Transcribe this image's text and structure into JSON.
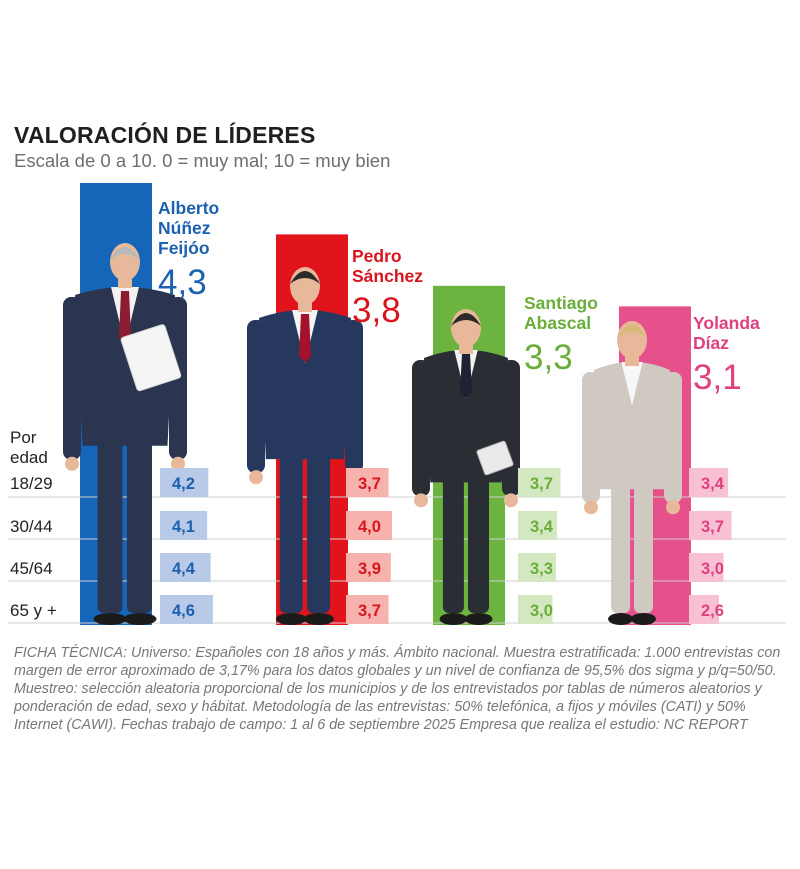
{
  "title": "VALORACIÓN DE LÍDERES",
  "subtitle": "Escala de 0 a 10. 0 = muy mal; 10 = muy bien",
  "age_header": [
    "Por",
    "edad"
  ],
  "ficha": "FICHA TÉCNICA: Universo: Españoles con 18 años y más. Ámbito nacional. Muestra estratificada: 1.000 entrevistas con margen de error aproximado de 3,17% para los datos globales y un nivel de confianza de 95,5% dos sigma y p/q=50/50. Muestreo: selección aleatoria proporcional de los municipios y de los entrevistados por tablas de números aleatorios y ponderación de edad, sexo y hábitat. Metodología de las entrevistas: 50% telefónica, a fijos y móviles (CATI) y 50% Internet (CAWI). Fechas trabajo de campo: 1 al 6 de septiembre 2025 Empresa que realiza el estudio: NC REPORT",
  "chart_data": {
    "type": "bar",
    "title": "VALORACIÓN DE LÍDERES",
    "subtitle": "Escala de 0 a 10. 0 = muy mal; 10 = muy bien",
    "ylim": [
      0,
      10
    ],
    "categories": [
      "Alberto Núñez Feijóo",
      "Pedro Sánchez",
      "Santiago Abascal",
      "Yolanda Díaz"
    ],
    "values": [
      4.3,
      3.8,
      3.3,
      3.1
    ],
    "value_labels": [
      "4,3",
      "3,8",
      "3,3",
      "3,1"
    ],
    "age_groups": [
      "18/29",
      "30/44",
      "45/64",
      "65 y +"
    ],
    "leaders": [
      {
        "name_lines": [
          "Alberto",
          "Núñez",
          "Feijóo"
        ],
        "score": 4.3,
        "score_label": "4,3",
        "color": "#1565b8",
        "light_color": "#b9c9e8",
        "text_color": "#1c60b0",
        "by_age": [
          4.2,
          4.1,
          4.4,
          4.6
        ],
        "by_age_labels": [
          "4,2",
          "4,1",
          "4,4",
          "4,6"
        ]
      },
      {
        "name_lines": [
          "Pedro",
          "Sánchez"
        ],
        "score": 3.8,
        "score_label": "3,8",
        "color": "#e1141c",
        "light_color": "#f6b3ae",
        "text_color": "#d9141c",
        "by_age": [
          3.7,
          4.0,
          3.9,
          3.7
        ],
        "by_age_labels": [
          "3,7",
          "4,0",
          "3,9",
          "3,7"
        ]
      },
      {
        "name_lines": [
          "Santiago",
          "Abascal"
        ],
        "score": 3.3,
        "score_label": "3,3",
        "color": "#6cb33f",
        "light_color": "#d3e8c0",
        "text_color": "#6aae3a",
        "by_age": [
          3.7,
          3.4,
          3.3,
          3.0
        ],
        "by_age_labels": [
          "3,7",
          "3,4",
          "3,3",
          "3,0"
        ]
      },
      {
        "name_lines": [
          "Yolanda",
          "Díaz"
        ],
        "score": 3.1,
        "score_label": "3,1",
        "color": "#e6508b",
        "light_color": "#f7c0d3",
        "text_color": "#e0407f",
        "by_age": [
          3.4,
          3.7,
          3.0,
          2.6
        ],
        "by_age_labels": [
          "3,4",
          "3,7",
          "3,0",
          "2,6"
        ]
      }
    ]
  }
}
